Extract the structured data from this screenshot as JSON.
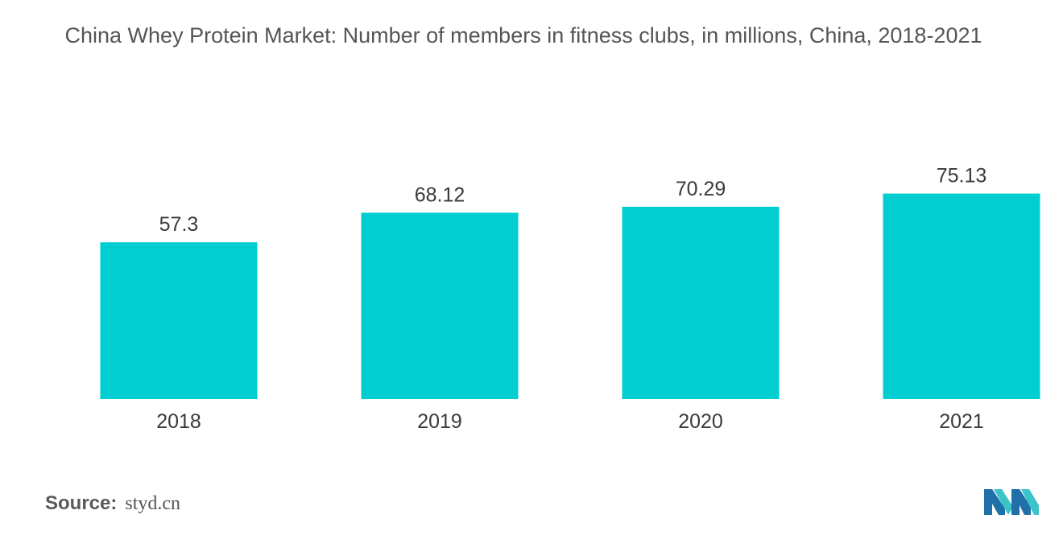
{
  "title": "China Whey Protein Market: Number of members in fitness clubs, in millions, China, 2018-2021",
  "source": {
    "label": "Source:",
    "value": "styd.cn"
  },
  "colors": {
    "bar": "#00CED1",
    "text": "#3a3a3a"
  },
  "chart_data": {
    "type": "bar",
    "title": "China Whey Protein Market: Number of members in fitness clubs, in millions, China, 2018-2021",
    "xlabel": "",
    "ylabel": "",
    "categories": [
      "2018",
      "2019",
      "2020",
      "2021"
    ],
    "values": [
      57.3,
      68.12,
      70.29,
      75.13
    ],
    "value_labels": [
      "57.3",
      "68.12",
      "70.29",
      "75.13"
    ],
    "ylim": [
      0,
      80
    ],
    "grid": false,
    "legend": "none"
  }
}
